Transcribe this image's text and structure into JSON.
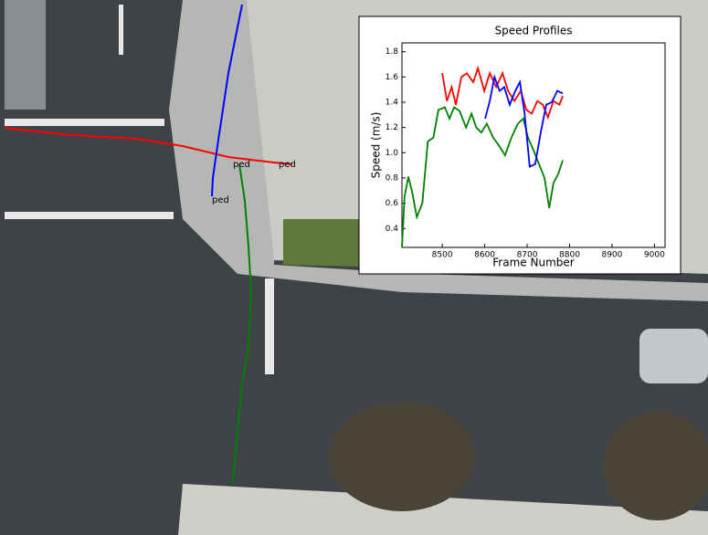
{
  "scene": {
    "labels": [
      "ped",
      "ped",
      "ped"
    ]
  },
  "chart_data": {
    "type": "line",
    "title": "Speed Profiles",
    "x_label": "Frame Number",
    "y_label": "Speed (m/s)",
    "xlim": [
      8405,
      9025
    ],
    "xticks": [
      8500,
      8600,
      8700,
      8800,
      8900,
      9000
    ],
    "ylim": [
      0.25,
      1.87
    ],
    "yticks": [
      0.4,
      0.6,
      0.8,
      1.0,
      1.2,
      1.4,
      1.6,
      1.8
    ],
    "series": [
      {
        "color": "#008000",
        "x": [
          8405,
          8411,
          8420,
          8429,
          8440,
          8453,
          8466,
          8479,
          8491,
          8506,
          8517,
          8528,
          8541,
          8556,
          8569,
          8580,
          8592,
          8605,
          8620,
          8635,
          8648,
          8663,
          8678,
          8691,
          8702,
          8715,
          8728,
          8741,
          8752,
          8762,
          8773,
          8784
        ],
        "values": [
          0.25,
          0.65,
          0.81,
          0.69,
          0.49,
          0.6,
          1.09,
          1.12,
          1.34,
          1.36,
          1.27,
          1.36,
          1.33,
          1.2,
          1.31,
          1.2,
          1.16,
          1.23,
          1.12,
          1.05,
          0.98,
          1.12,
          1.23,
          1.27,
          1.12,
          1.02,
          0.91,
          0.8,
          0.56,
          0.76,
          0.83,
          0.94
        ]
      },
      {
        "color": "#ff0000",
        "x": [
          8500,
          8511,
          8522,
          8532,
          8545,
          8558,
          8573,
          8584,
          8599,
          8612,
          8627,
          8642,
          8655,
          8670,
          8685,
          8698,
          8711,
          8724,
          8737,
          8749,
          8762,
          8776,
          8784
        ],
        "values": [
          1.63,
          1.41,
          1.52,
          1.38,
          1.6,
          1.63,
          1.56,
          1.67,
          1.49,
          1.63,
          1.52,
          1.63,
          1.49,
          1.41,
          1.49,
          1.34,
          1.31,
          1.41,
          1.38,
          1.28,
          1.41,
          1.38,
          1.45
        ]
      },
      {
        "color": "#0000ff",
        "x": [
          8601,
          8612,
          8623,
          8635,
          8646,
          8659,
          8672,
          8683,
          8694,
          8706,
          8719,
          8732,
          8745,
          8758,
          8771,
          8784
        ],
        "values": [
          1.27,
          1.41,
          1.6,
          1.49,
          1.52,
          1.38,
          1.49,
          1.56,
          1.31,
          0.89,
          0.91,
          1.16,
          1.38,
          1.4,
          1.49,
          1.47
        ]
      }
    ]
  }
}
